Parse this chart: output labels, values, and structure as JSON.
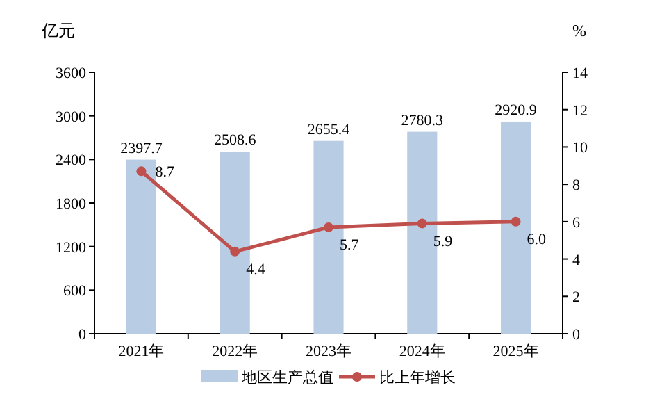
{
  "chart_data": {
    "type": "bar",
    "ylabel": "亿元",
    "y2label": "%",
    "categories": [
      "2021年",
      "2022年",
      "2023年",
      "2024年",
      "2025年"
    ],
    "series": [
      {
        "name": "地区生产总值",
        "color": "#b8cce4",
        "values": [
          2397.7,
          2508.6,
          2655.4,
          2780.3,
          2920.9
        ]
      },
      {
        "name": "比上年增长",
        "type": "line",
        "axis": "y2",
        "color": "#c0504d",
        "values": [
          8.7,
          4.4,
          5.7,
          5.9,
          6.0
        ],
        "value_labels": [
          "8.7",
          "4.4",
          "5.7",
          "5.9",
          "6.0"
        ]
      }
    ],
    "ylim": [
      0,
      3600
    ],
    "yticks": [
      0,
      600,
      1200,
      1800,
      2400,
      3000,
      3600
    ],
    "y2lim": [
      0,
      14
    ],
    "y2ticks": [
      0,
      2,
      4,
      6,
      8,
      10,
      12,
      14
    ],
    "data_labels": true,
    "legend": "bottom",
    "marker": "circle",
    "grid": false
  }
}
